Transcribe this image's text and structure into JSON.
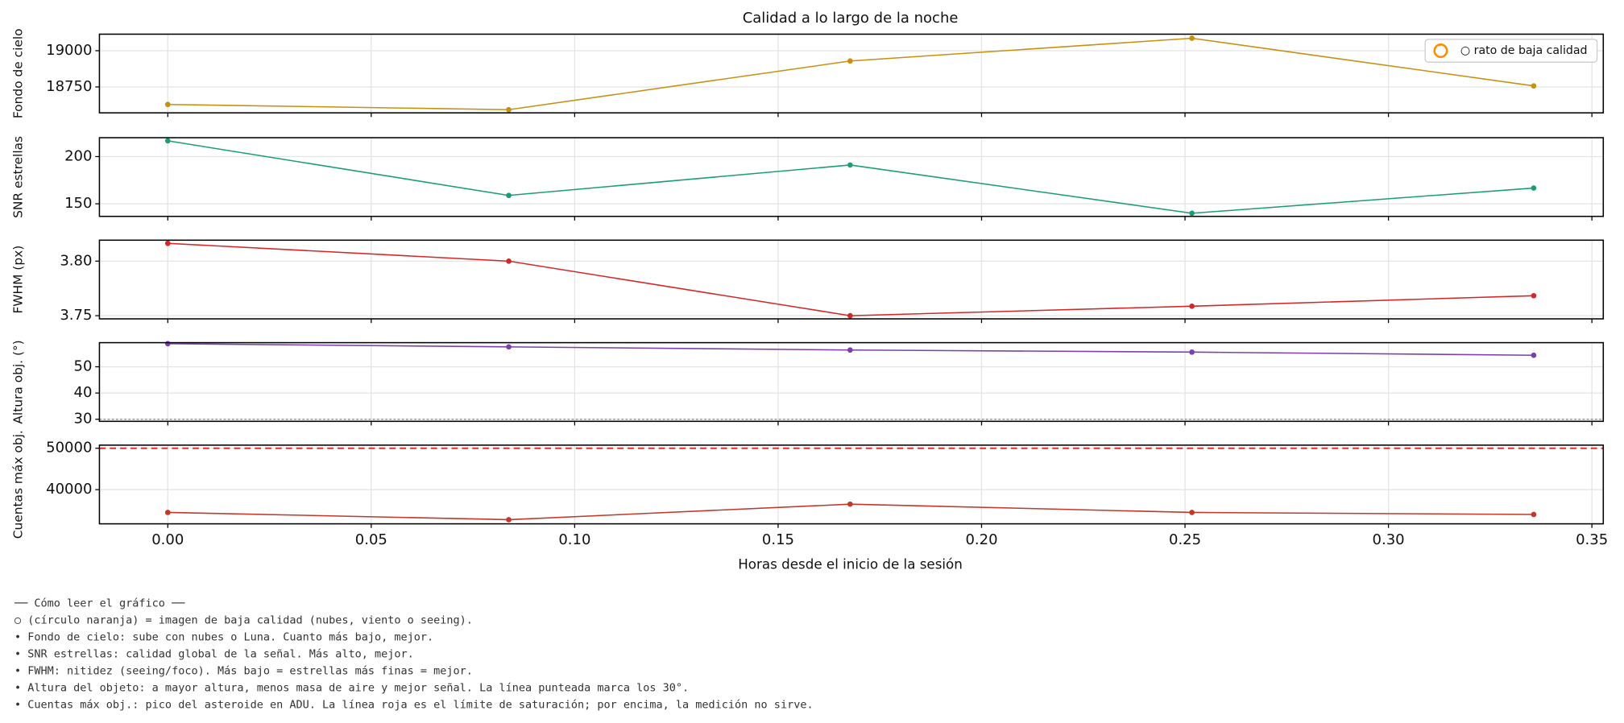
{
  "chart_data": [
    {
      "type": "line",
      "title": "Calidad a lo largo de la noche",
      "ylabel": "Fondo de cielo",
      "x": [
        0,
        0.0838,
        0.1677,
        0.2517,
        0.3357
      ],
      "values": [
        18629,
        18593,
        18929,
        19086,
        18757
      ],
      "color": "#c8900f",
      "xlim": [
        -0.0168,
        0.3528
      ],
      "xticks": [
        0,
        0.05,
        0.1,
        0.15,
        0.2,
        0.25,
        0.3,
        0.35
      ],
      "ylim": [
        18571,
        19114
      ],
      "yticks": [
        18750,
        19000
      ],
      "grid": true,
      "legend": {
        "label": "○ rato de baja calidad",
        "color": "#ff8c00",
        "loc": "upper right"
      }
    },
    {
      "type": "line",
      "ylabel": "SNR estrellas",
      "x": [
        0,
        0.0838,
        0.1677,
        0.2517,
        0.3357
      ],
      "values": [
        216.7,
        158.9,
        191.1,
        140,
        166.7
      ],
      "color": "#1a9e77",
      "xlim": [
        -0.0168,
        0.3528
      ],
      "xticks": [
        0,
        0.05,
        0.1,
        0.15,
        0.2,
        0.25,
        0.3,
        0.35
      ],
      "ylim": [
        136.7,
        220
      ],
      "yticks": [
        150,
        200
      ],
      "grid": true
    },
    {
      "type": "line",
      "ylabel": "FWHM (px)",
      "x": [
        0,
        0.0838,
        0.1677,
        0.2517,
        0.3357
      ],
      "values": [
        3.8163,
        3.8,
        3.75,
        3.7587,
        3.7683
      ],
      "color": "#d62728",
      "xlim": [
        -0.0168,
        0.3528
      ],
      "xticks": [
        0,
        0.05,
        0.1,
        0.15,
        0.2,
        0.25,
        0.3,
        0.35
      ],
      "ylim": [
        3.7471,
        3.8192
      ],
      "yticks": [
        {
          "value": 3.75,
          "label": "3.75"
        },
        {
          "value": 3.8,
          "label": "3.80"
        }
      ],
      "grid": true
    },
    {
      "type": "line",
      "ylabel": "Altura obj. (°)",
      "x": [
        0,
        0.0838,
        0.1677,
        0.2517,
        0.3357
      ],
      "values": [
        58.8,
        57.6,
        56.4,
        55.6,
        54.4
      ],
      "color": "#7b3fb0",
      "xlim": [
        -0.0168,
        0.3528
      ],
      "xticks": [
        0,
        0.05,
        0.1,
        0.15,
        0.2,
        0.25,
        0.3,
        0.35
      ],
      "ylim": [
        29.2,
        59.2
      ],
      "yticks": [
        30,
        40,
        50
      ],
      "grid": true,
      "hline": {
        "value": 30,
        "color": "#888888",
        "style": "dotted"
      }
    },
    {
      "type": "line",
      "ylabel": "Cuentas máx obj.",
      "xlabel": "Horas desde el inicio de la sesión",
      "x": [
        0,
        0.0838,
        0.1677,
        0.2517,
        0.3357
      ],
      "values": [
        34500,
        32750,
        36500,
        34500,
        34000
      ],
      "color": "#c0392b",
      "xlim": [
        -0.0168,
        0.3528
      ],
      "xticks": [
        {
          "value": 0,
          "label": "0.00"
        },
        {
          "value": 0.05,
          "label": "0.05"
        },
        {
          "value": 0.1,
          "label": "0.10"
        },
        {
          "value": 0.15,
          "label": "0.15"
        },
        {
          "value": 0.2,
          "label": "0.20"
        },
        {
          "value": 0.25,
          "label": "0.25"
        },
        {
          "value": 0.3,
          "label": "0.30"
        },
        {
          "value": 0.35,
          "label": "0.35"
        }
      ],
      "ylim": [
        31750,
        50750
      ],
      "yticks": [
        40000,
        50000
      ],
      "grid": true,
      "hline": {
        "value": 50000,
        "color": "#e03030",
        "style": "dashed"
      }
    }
  ],
  "notes": [
    "── Cómo leer el gráfico ──",
    "○ (círculo naranja) = imagen de baja calidad (nubes, viento o seeing).",
    "• Fondo de cielo: sube con nubes o Luna. Cuanto más bajo, mejor.",
    "• SNR estrellas: calidad global de la señal. Más alto, mejor.",
    "• FWHM: nitidez (seeing/foco). Más bajo = estrellas más finas = mejor.",
    "• Altura del objeto: a mayor altura, menos masa de aire y mejor señal. La línea punteada marca los 30°.",
    "• Cuentas máx obj.: pico del asteroide en ADU. La línea roja es el límite de saturación; por encima, la medición no sirve."
  ]
}
